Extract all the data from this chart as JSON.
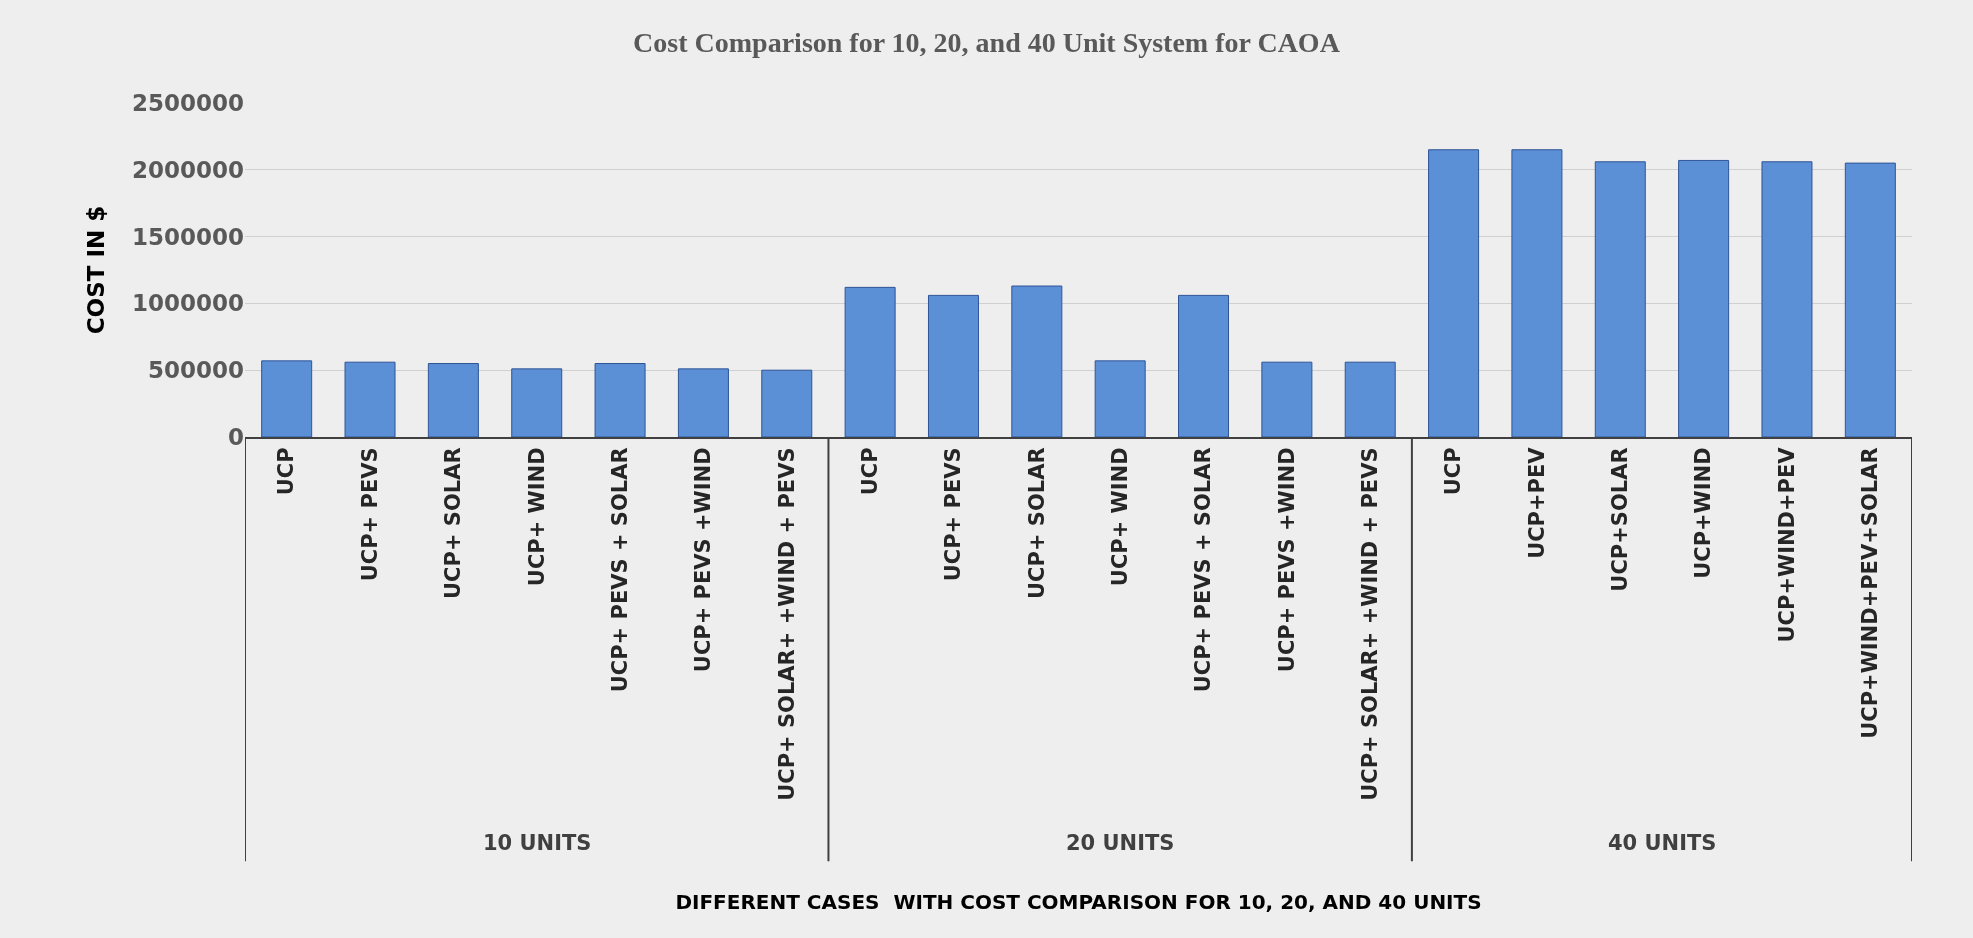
{
  "chart_data": {
    "type": "bar",
    "title": "Cost Comparison for 10, 20, and 40 Unit System for CAOA",
    "xlabel": "DIFFERENT CASES  WITH COST COMPARISON FOR 10, 20, AND 40 UNITS",
    "ylabel": "COST IN $",
    "categories": [
      "UCP",
      "UCP+ PEVS",
      "UCP+ SOLAR",
      "UCP+ WIND",
      "UCP+ PEVS + SOLAR",
      "UCP+ PEVS +WIND",
      "UCP+ SOLAR+ +WIND + PEVS",
      "UCP",
      "UCP+ PEVS",
      "UCP+ SOLAR",
      "UCP+ WIND",
      "UCP+ PEVS + SOLAR",
      "UCP+ PEVS +WIND",
      "UCP+ SOLAR+ +WIND + PEVS",
      "UCP",
      "UCP+PEV",
      "UCP+SOLAR",
      "UCP+WIND",
      "UCP+WIND+PEV",
      "UCP+WIND+PEV+SOLAR"
    ],
    "values": [
      570000,
      560000,
      550000,
      510000,
      550000,
      510000,
      500000,
      1120000,
      1060000,
      1130000,
      570000,
      1060000,
      560000,
      560000,
      2150000,
      2150000,
      2060000,
      2070000,
      2060000,
      2050000
    ],
    "color": "#5b8fd6",
    "ylim": [
      0,
      2500000
    ],
    "yticks": [
      0,
      500000,
      1000000,
      1500000,
      2000000,
      2500000
    ],
    "grid": "y",
    "annotations": [
      "10 UNITS",
      "20 UNITS",
      "40 UNITS"
    ]
  }
}
